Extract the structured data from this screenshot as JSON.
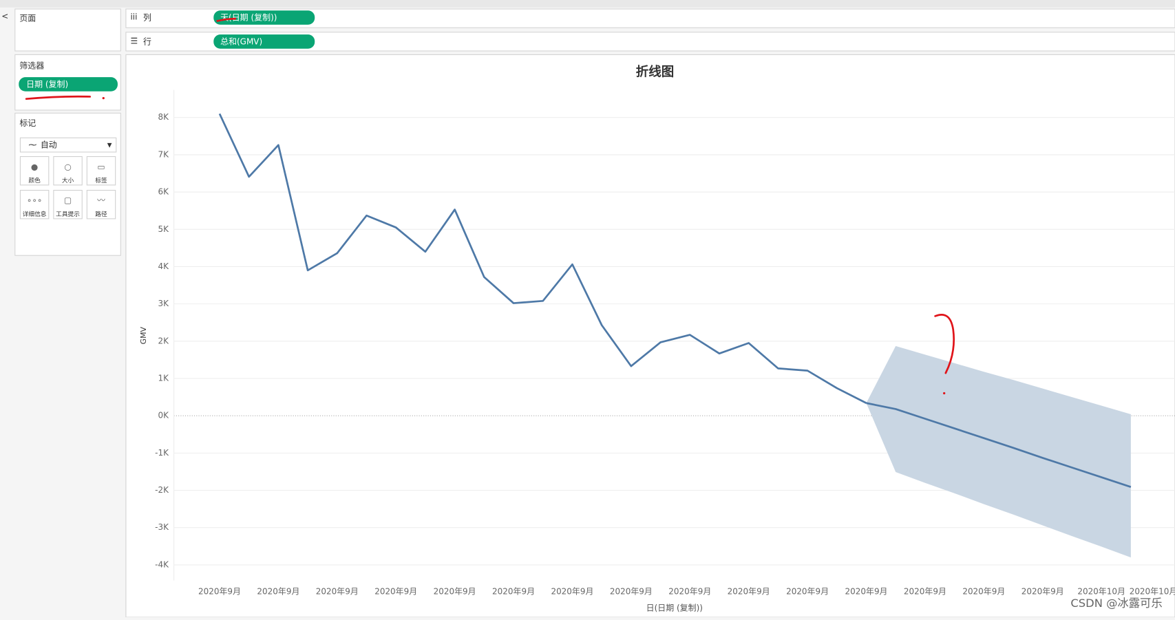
{
  "ui": {
    "pages": "页面",
    "columns": "列",
    "rows": "行",
    "column_pill": "天(日期 (复制))",
    "row_pill": "总和(GMV)",
    "filters": "筛选器",
    "filter_pill": "日期 (复制)",
    "marks": "标记",
    "mark_type": "自动",
    "mark_buttons": [
      "颜色",
      "大小",
      "标签",
      "详细信息",
      "工具提示",
      "路径"
    ],
    "watermark": "CSDN @冰露可乐"
  },
  "chart_data": {
    "type": "line",
    "title": "折线图",
    "x_label": "日(日期 (复制))",
    "y_label": "GMV",
    "categories": [
      "2020年9月",
      null,
      "2020年9月",
      null,
      "2020年9月",
      null,
      "2020年9月",
      null,
      "2020年9月",
      null,
      "2020年9月",
      null,
      "2020年9月",
      null,
      "2020年9月",
      null,
      "2020年9月",
      null,
      "2020年9月",
      null,
      "2020年9月",
      null,
      "2020年9月",
      null,
      "2020年9月",
      null,
      "2020年9月",
      null,
      "2020年9月",
      null,
      "2020年10月",
      "2020年10月"
    ],
    "series": [
      {
        "color": "#4e79a7",
        "values": [
          8100,
          6410,
          7260,
          3900,
          4360,
          5370,
          5050,
          4400,
          5530,
          3720,
          3020,
          3080,
          4060,
          2430,
          1330,
          1970,
          2170,
          1670,
          1950,
          1270,
          1210,
          740,
          340,
          null,
          null,
          null,
          null,
          null,
          null,
          null,
          null,
          null
        ]
      },
      {
        "color": "#4e79a7",
        "values": [
          null,
          null,
          null,
          null,
          null,
          null,
          null,
          null,
          null,
          null,
          null,
          null,
          null,
          null,
          null,
          null,
          null,
          null,
          null,
          null,
          null,
          null,
          340,
          180,
          -80,
          -340,
          -600,
          -860,
          -1130,
          -1390,
          -1650,
          -1910
        ]
      }
    ],
    "band": {
      "color": "#c9d6e3",
      "upper": [
        null,
        null,
        null,
        null,
        null,
        null,
        null,
        null,
        null,
        null,
        null,
        null,
        null,
        null,
        null,
        null,
        null,
        null,
        null,
        null,
        null,
        null,
        340,
        1870,
        1640,
        1410,
        1180,
        960,
        730,
        500,
        270,
        40
      ],
      "lower": [
        null,
        null,
        null,
        null,
        null,
        null,
        null,
        null,
        null,
        null,
        null,
        null,
        null,
        null,
        null,
        null,
        null,
        null,
        null,
        null,
        null,
        null,
        340,
        -1510,
        -1800,
        -2080,
        -2370,
        -2650,
        -2940,
        -3230,
        -3510,
        -3800
      ]
    },
    "ylim": [
      -4420,
      8740
    ],
    "yticks": [
      {
        "value": 8000,
        "label": "8K"
      },
      {
        "value": 7000,
        "label": "7K"
      },
      {
        "value": 6000,
        "label": "6K"
      },
      {
        "value": 5000,
        "label": "5K"
      },
      {
        "value": 4000,
        "label": "4K"
      },
      {
        "value": 3000,
        "label": "3K"
      },
      {
        "value": 2000,
        "label": "2K"
      },
      {
        "value": 1000,
        "label": "1K"
      },
      {
        "value": 0,
        "label": "0K"
      },
      {
        "value": -1000,
        "label": "-1K"
      },
      {
        "value": -2000,
        "label": "-2K"
      },
      {
        "value": -3000,
        "label": "-3K"
      },
      {
        "value": -4000,
        "label": "-4K"
      }
    ],
    "grid": true
  }
}
